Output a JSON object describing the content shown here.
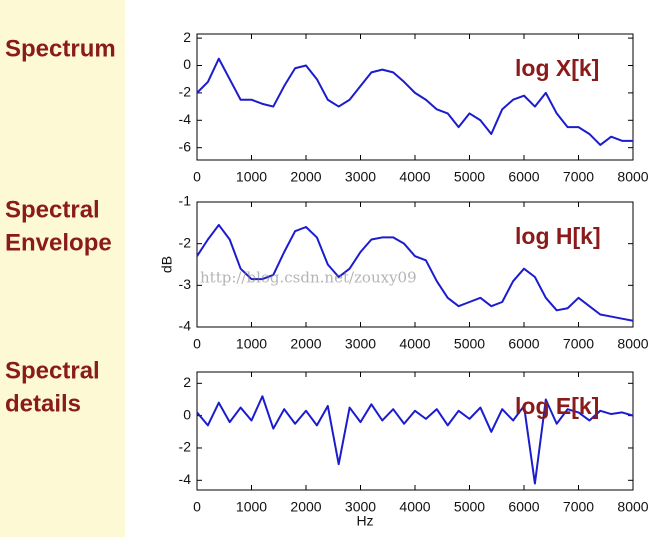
{
  "chart_data": [
    {
      "type": "line",
      "side_label": [
        "Spectrum"
      ],
      "annotation": "log X[k]",
      "x": [
        0,
        200,
        400,
        600,
        800,
        1000,
        1200,
        1400,
        1600,
        1800,
        2000,
        2200,
        2400,
        2600,
        2800,
        3000,
        3200,
        3400,
        3600,
        3800,
        4000,
        4200,
        4400,
        4600,
        4800,
        5000,
        5200,
        5400,
        5600,
        5800,
        6000,
        6200,
        6400,
        6600,
        6800,
        7000,
        7200,
        7400,
        7600,
        7800,
        8000
      ],
      "series": [
        {
          "color": "#1c1ccf",
          "values": [
            -2,
            -1.2,
            0.5,
            -1,
            -2.5,
            -2.5,
            -2.8,
            -3,
            -1.5,
            -0.2,
            0,
            -1,
            -2.5,
            -3,
            -2.5,
            -1.5,
            -0.5,
            -0.3,
            -0.5,
            -1.2,
            -2,
            -2.5,
            -3.2,
            -3.5,
            -4.5,
            -3.5,
            -4,
            -5,
            -3.2,
            -2.5,
            -2.2,
            -3,
            -2,
            -3.5,
            -4.5,
            -4.5,
            -5,
            -5.8,
            -5.2,
            -5.5,
            -5.5
          ]
        }
      ],
      "xlim": [
        0,
        8000
      ],
      "xticks": [
        0,
        1000,
        2000,
        3000,
        4000,
        5000,
        6000,
        7000,
        8000
      ],
      "ylim": [
        -6.9,
        2.3
      ],
      "yticks": [
        2,
        0,
        -2,
        -4,
        -6
      ]
    },
    {
      "type": "line",
      "side_label": [
        "Spectral",
        "Envelope"
      ],
      "annotation": "log H[k]",
      "ylabel": "dB",
      "watermark": "http://blog.csdn.net/zouxy09",
      "x": [
        0,
        200,
        400,
        600,
        800,
        1000,
        1200,
        1400,
        1600,
        1800,
        2000,
        2200,
        2400,
        2600,
        2800,
        3000,
        3200,
        3400,
        3600,
        3800,
        4000,
        4200,
        4400,
        4600,
        4800,
        5000,
        5200,
        5400,
        5600,
        5800,
        6000,
        6200,
        6400,
        6600,
        6800,
        7000,
        7200,
        7400,
        7600,
        7800,
        8000
      ],
      "series": [
        {
          "color": "#1c1ccf",
          "values": [
            -2.3,
            -1.9,
            -1.55,
            -1.9,
            -2.6,
            -2.85,
            -2.85,
            -2.75,
            -2.2,
            -1.7,
            -1.6,
            -1.85,
            -2.5,
            -2.8,
            -2.6,
            -2.2,
            -1.9,
            -1.85,
            -1.85,
            -2.0,
            -2.3,
            -2.4,
            -2.9,
            -3.3,
            -3.5,
            -3.4,
            -3.3,
            -3.5,
            -3.4,
            -2.9,
            -2.6,
            -2.8,
            -3.3,
            -3.6,
            -3.55,
            -3.3,
            -3.5,
            -3.7,
            -3.75,
            -3.8,
            -3.85
          ]
        }
      ],
      "xlim": [
        0,
        8000
      ],
      "xticks": [
        0,
        1000,
        2000,
        3000,
        4000,
        5000,
        6000,
        7000,
        8000
      ],
      "ylim": [
        -4,
        -1
      ],
      "yticks": [
        -1,
        -2,
        -3,
        -4
      ]
    },
    {
      "type": "line",
      "side_label": [
        "Spectral",
        "details"
      ],
      "annotation": "log E[k]",
      "xlabel": "Hz",
      "x": [
        0,
        200,
        400,
        600,
        800,
        1000,
        1200,
        1400,
        1600,
        1800,
        2000,
        2200,
        2400,
        2600,
        2800,
        3000,
        3200,
        3400,
        3600,
        3800,
        4000,
        4200,
        4400,
        4600,
        4800,
        5000,
        5200,
        5400,
        5600,
        5800,
        6000,
        6200,
        6400,
        6600,
        6800,
        7000,
        7200,
        7400,
        7600,
        7800,
        8000
      ],
      "series": [
        {
          "color": "#1c1ccf",
          "values": [
            0.2,
            -0.6,
            0.8,
            -0.4,
            0.5,
            -0.3,
            1.2,
            -0.8,
            0.4,
            -0.5,
            0.3,
            -0.6,
            0.6,
            -3.0,
            0.5,
            -0.4,
            0.7,
            -0.3,
            0.4,
            -0.5,
            0.3,
            -0.2,
            0.4,
            -0.6,
            0.3,
            -0.2,
            0.5,
            -1.0,
            0.4,
            -0.3,
            0.6,
            -4.2,
            1.0,
            -0.5,
            0.4,
            0.2,
            -0.3,
            0.3,
            0.1,
            0.2,
            0.0
          ]
        }
      ],
      "xlim": [
        0,
        8000
      ],
      "xticks": [
        0,
        1000,
        2000,
        3000,
        4000,
        5000,
        6000,
        7000,
        8000
      ],
      "ylim": [
        -4.6,
        2.7
      ],
      "yticks": [
        2,
        0,
        -2,
        -4
      ]
    }
  ]
}
